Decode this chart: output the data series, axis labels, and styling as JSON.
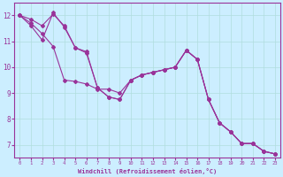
{
  "background_color": "#cceeff",
  "grid_color": "#b0dddd",
  "line_color": "#993399",
  "marker": "D",
  "marker_size": 2,
  "linewidth": 0.8,
  "xlim": [
    -0.5,
    23.5
  ],
  "ylim": [
    6.5,
    12.5
  ],
  "yticks": [
    7,
    8,
    9,
    10,
    11,
    12
  ],
  "xticks": [
    0,
    1,
    2,
    3,
    4,
    5,
    6,
    7,
    8,
    9,
    10,
    11,
    12,
    13,
    14,
    15,
    16,
    17,
    18,
    19,
    20,
    21,
    22,
    23
  ],
  "xlabel": "Windchill (Refroidissement éolien,°C)",
  "line1_x": [
    0,
    1,
    2,
    3,
    4,
    5,
    6,
    7,
    8,
    9,
    10,
    11,
    12,
    13,
    14,
    15,
    16,
    17,
    18,
    19,
    20,
    21,
    22,
    23
  ],
  "line1_y": [
    12.0,
    11.85,
    11.6,
    12.05,
    11.6,
    10.75,
    10.6,
    9.2,
    8.85,
    8.75,
    9.5,
    9.7,
    9.8,
    9.9,
    10.0,
    10.65,
    10.3,
    8.75,
    7.85,
    7.5,
    7.05,
    7.05,
    6.75,
    6.65
  ],
  "line2_x": [
    0,
    1,
    2,
    3,
    4,
    5,
    6,
    7,
    8,
    9,
    10,
    11,
    12,
    13,
    14,
    15,
    16,
    17,
    18,
    19,
    20,
    21,
    22,
    23
  ],
  "line2_y": [
    12.0,
    11.7,
    11.3,
    10.8,
    9.5,
    9.45,
    9.35,
    9.15,
    9.15,
    9.0,
    9.5,
    9.7,
    9.8,
    9.9,
    10.0,
    10.65,
    10.3,
    8.75,
    7.85,
    7.5,
    7.05,
    7.05,
    6.75,
    6.65
  ],
  "line3_x": [
    0,
    1,
    2,
    3,
    4,
    5,
    6,
    7,
    8,
    9,
    10,
    11,
    12,
    13,
    14,
    15,
    16,
    17,
    18,
    19,
    20,
    21,
    22,
    23
  ],
  "line3_y": [
    12.0,
    11.6,
    11.05,
    12.1,
    11.55,
    10.75,
    10.55,
    9.2,
    8.85,
    8.75,
    9.5,
    9.7,
    9.8,
    9.9,
    10.0,
    10.65,
    10.3,
    8.75,
    7.85,
    7.5,
    7.05,
    7.05,
    6.75,
    6.65
  ],
  "fig_width": 3.2,
  "fig_height": 2.0,
  "dpi": 100
}
